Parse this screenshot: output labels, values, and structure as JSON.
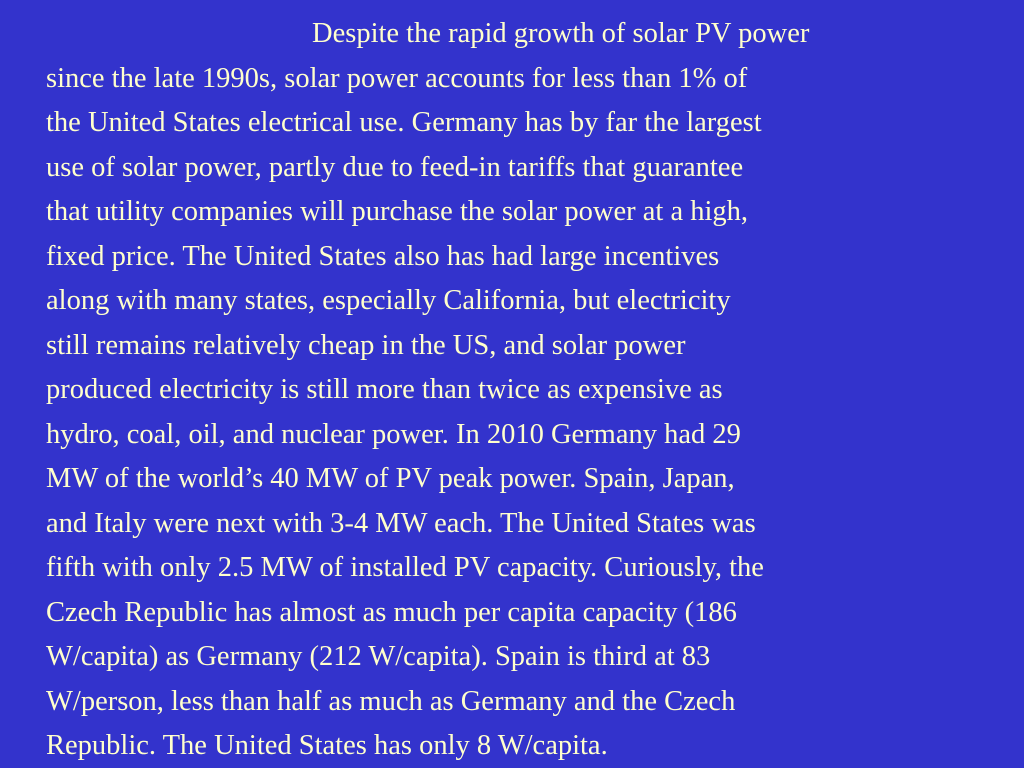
{
  "slide": {
    "background_color": "#3333cc",
    "text_color": "#ffffcc",
    "lines": [
      "Despite the rapid growth of solar PV power",
      "since the late 1990s, solar power accounts for less than 1% of",
      "the United States electrical use.  Germany has by far the largest",
      "use of solar power, partly due to feed-in tariffs that guarantee",
      "that utility companies will purchase the solar power at a high,",
      "fixed price.  The United States also has had large incentives",
      "along with many states, especially California, but electricity",
      "still remains relatively cheap in the US, and solar power",
      "produced electricity is still more than twice as expensive as",
      "hydro, coal, oil, and nuclear power.  In 2010 Germany had 29",
      "MW of the world’s 40 MW of PV peak power.  Spain, Japan,",
      "and Italy were next with 3-4 MW each.  The United States was",
      "fifth with only 2.5 MW of installed PV capacity.  Curiously, the",
      "Czech Republic has almost as much per capita capacity (186",
      "W/capita) as Germany (212 W/capita).  Spain is third at 83",
      "W/person, less than half as much as Germany and the Czech",
      "Republic.  The United States has only 8 W/capita."
    ]
  }
}
